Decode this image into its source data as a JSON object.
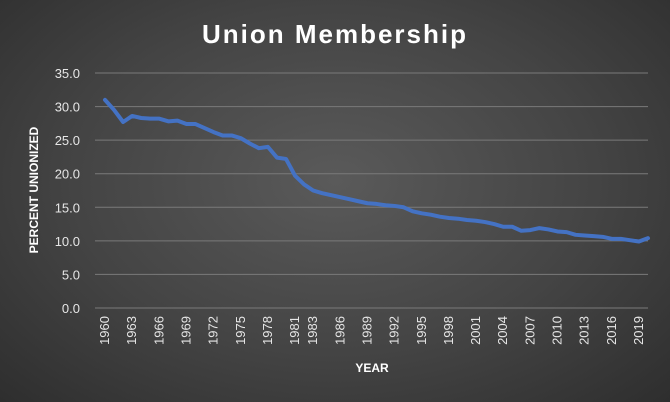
{
  "chart_data": {
    "type": "line",
    "title": "Union Membership",
    "xlabel": "YEAR",
    "ylabel": "PERCENT UNIONIZED",
    "ylim": [
      0,
      35
    ],
    "yticks": [
      "0.0",
      "5.0",
      "10.0",
      "15.0",
      "20.0",
      "25.0",
      "30.0",
      "35.0"
    ],
    "xticks": [
      "1960",
      "1963",
      "1966",
      "1969",
      "1972",
      "1975",
      "1978",
      "1981",
      "1983",
      "1986",
      "1989",
      "1992",
      "1995",
      "1998",
      "2001",
      "2004",
      "2007",
      "2010",
      "2013",
      "2016",
      "2019"
    ],
    "grid": true,
    "line_color": "#4472c4",
    "x": [
      "1960",
      "1961",
      "1962",
      "1963",
      "1964",
      "1965",
      "1966",
      "1967",
      "1968",
      "1969",
      "1970",
      "1971",
      "1972",
      "1973",
      "1974",
      "1975",
      "1976",
      "1977",
      "1978",
      "1979",
      "1980",
      "1981",
      "1982",
      "1983",
      "1984",
      "1985",
      "1986",
      "1987",
      "1988",
      "1989",
      "1990",
      "1991",
      "1992",
      "1993",
      "1994",
      "1995",
      "1996",
      "1997",
      "1998",
      "1999",
      "2000",
      "2001",
      "2002",
      "2003",
      "2004",
      "2005",
      "2006",
      "2007",
      "2008",
      "2009",
      "2010",
      "2011",
      "2012",
      "2013",
      "2014",
      "2015",
      "2016",
      "2017",
      "2018",
      "2019",
      "2020"
    ],
    "values": [
      31.0,
      29.5,
      27.7,
      28.6,
      28.3,
      28.2,
      28.2,
      27.8,
      27.9,
      27.4,
      27.4,
      26.8,
      26.2,
      25.7,
      25.7,
      25.3,
      24.5,
      23.8,
      24.0,
      22.4,
      22.2,
      19.7,
      18.4,
      17.5,
      17.1,
      16.8,
      16.5,
      16.2,
      15.9,
      15.6,
      15.5,
      15.3,
      15.2,
      15.0,
      14.4,
      14.1,
      13.9,
      13.6,
      13.4,
      13.3,
      13.1,
      13.0,
      12.8,
      12.5,
      12.1,
      12.1,
      11.5,
      11.6,
      11.9,
      11.7,
      11.4,
      11.3,
      10.9,
      10.8,
      10.7,
      10.6,
      10.3,
      10.3,
      10.1,
      9.9,
      10.4
    ]
  }
}
